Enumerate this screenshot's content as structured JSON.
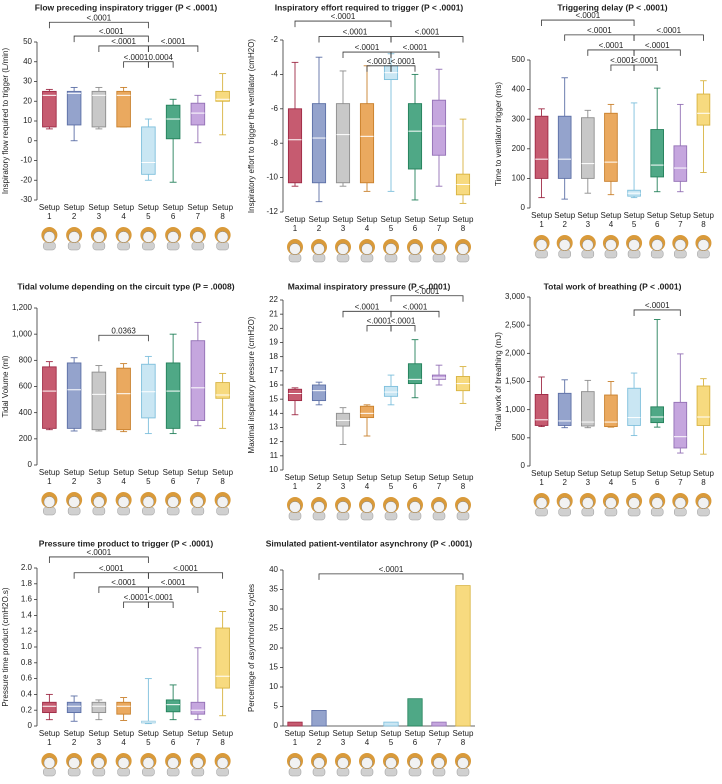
{
  "chart_data": [
    {
      "type": "box",
      "title": "Flow preceding inspiratory trigger (P < .0001)",
      "ylabel": "Inspiratory flow required to trigger (L/min)",
      "categories": [
        "Setup 1",
        "Setup 2",
        "Setup 3",
        "Setup 4",
        "Setup 5",
        "Setup 6",
        "Setup 7",
        "Setup 8"
      ],
      "colors": [
        "#c65b70",
        "#94a3cc",
        "#c8c8c8",
        "#eaa95f",
        "#c9e6f3",
        "#4fa886",
        "#c5a6de",
        "#f7da7f"
      ],
      "edge_colors": [
        "#9e2a45",
        "#5c6fa6",
        "#8d8d8d",
        "#c9802c",
        "#7dbfdc",
        "#24815b",
        "#9370b5",
        "#d8b340"
      ],
      "ylim": [
        -30,
        50
      ],
      "yticks": [
        -30,
        -20,
        -10,
        0,
        10,
        20,
        30,
        40,
        50
      ],
      "boxes": [
        {
          "min": 6,
          "q1": 7,
          "median": 23,
          "q3": 25,
          "max": 26
        },
        {
          "min": 0,
          "q1": 8,
          "median": 24,
          "q3": 25,
          "max": 27
        },
        {
          "min": 6,
          "q1": 7,
          "median": 23,
          "q3": 25,
          "max": 27
        },
        {
          "min": 7,
          "q1": 7,
          "median": 23,
          "q3": 25,
          "max": 27
        },
        {
          "min": -20,
          "q1": -17,
          "median": -11,
          "q3": 7,
          "max": 11
        },
        {
          "min": -21,
          "q1": 1,
          "median": 11,
          "q3": 18,
          "max": 21
        },
        {
          "min": -1,
          "q1": 8,
          "median": 14,
          "q3": 19,
          "max": 23
        },
        {
          "min": 3,
          "q1": 20,
          "median": 21,
          "q3": 25,
          "max": 34
        }
      ],
      "brackets": [
        {
          "from": 0,
          "to": 4,
          "y": 60,
          "label": "<.0001"
        },
        {
          "from": 1,
          "to": 4,
          "y": 53,
          "label": "<.0001"
        },
        {
          "from": 2,
          "to": 4,
          "y": 48,
          "label": "<.0001"
        },
        {
          "from": 4,
          "to": 6,
          "y": 48,
          "label": "<.0001"
        },
        {
          "from": 3,
          "to": 4,
          "y": 40,
          "label": "<.0001"
        },
        {
          "from": 4,
          "to": 5,
          "y": 40,
          "label": "0.0004"
        }
      ]
    },
    {
      "type": "box",
      "title": "Inspiratory effort required to trigger (P < .0001)",
      "ylabel": "Inspiratory effort to trigger the ventilator (cmH2O)",
      "categories": [
        "Setup 1",
        "Setup 2",
        "Setup 3",
        "Setup 4",
        "Setup 5",
        "Setup 6",
        "Setup 7",
        "Setup 8"
      ],
      "colors": [
        "#c65b70",
        "#94a3cc",
        "#c8c8c8",
        "#eaa95f",
        "#c9e6f3",
        "#4fa886",
        "#c5a6de",
        "#f7da7f"
      ],
      "edge_colors": [
        "#9e2a45",
        "#5c6fa6",
        "#8d8d8d",
        "#c9802c",
        "#7dbfdc",
        "#24815b",
        "#9370b5",
        "#d8b340"
      ],
      "ylim": [
        -12,
        -2
      ],
      "yticks": [
        -12,
        -10,
        -8,
        -6,
        -4,
        -2
      ],
      "boxes": [
        {
          "min": -10.5,
          "q1": -10.3,
          "median": -7.8,
          "q3": -6,
          "max": -3.3
        },
        {
          "min": -11.4,
          "q1": -10.3,
          "median": -7.7,
          "q3": -5.7,
          "max": -3
        },
        {
          "min": -10.5,
          "q1": -10.3,
          "median": -7.5,
          "q3": -5.7,
          "max": -3.8
        },
        {
          "min": -10.8,
          "q1": -10.3,
          "median": -7.6,
          "q3": -5.7,
          "max": -3.5
        },
        {
          "min": -10.8,
          "q1": -4.3,
          "median": -3.9,
          "q3": -3.5,
          "max": -2.8
        },
        {
          "min": -11.3,
          "q1": -9.5,
          "median": -7.3,
          "q3": -5.7,
          "max": -4
        },
        {
          "min": -10.5,
          "q1": -8.7,
          "median": -7,
          "q3": -5.5,
          "max": -3.7
        },
        {
          "min": -11.5,
          "q1": -11,
          "median": -10.4,
          "q3": -9.8,
          "max": -6.6
        }
      ],
      "brackets": [
        {
          "from": 0,
          "to": 4,
          "y": -0.9,
          "label": "<.0001"
        },
        {
          "from": 1,
          "to": 4,
          "y": -1.8,
          "label": "<.0001"
        },
        {
          "from": 4,
          "to": 7,
          "y": -1.8,
          "label": "<.0001"
        },
        {
          "from": 2,
          "to": 4,
          "y": -2.7,
          "label": "<.0001"
        },
        {
          "from": 4,
          "to": 6,
          "y": -2.7,
          "label": "<.0001"
        },
        {
          "from": 3,
          "to": 4,
          "y": -3.5,
          "label": "<.0001"
        },
        {
          "from": 4,
          "to": 5,
          "y": -3.5,
          "label": "<.0001"
        }
      ]
    },
    {
      "type": "box",
      "title": "Triggering delay (P < .0001)",
      "ylabel": "Time to ventilator trigger (ms)",
      "categories": [
        "Setup 1",
        "Setup 2",
        "Setup 3",
        "Setup 4",
        "Setup 5",
        "Setup 6",
        "Setup 7",
        "Setup 8"
      ],
      "colors": [
        "#c65b70",
        "#94a3cc",
        "#c8c8c8",
        "#eaa95f",
        "#c9e6f3",
        "#4fa886",
        "#c5a6de",
        "#f7da7f"
      ],
      "edge_colors": [
        "#9e2a45",
        "#5c6fa6",
        "#8d8d8d",
        "#c9802c",
        "#7dbfdc",
        "#24815b",
        "#9370b5",
        "#d8b340"
      ],
      "ylim": [
        0,
        500
      ],
      "yticks": [
        0,
        100,
        200,
        300,
        400,
        500
      ],
      "boxes": [
        {
          "min": 35,
          "q1": 100,
          "median": 165,
          "q3": 310,
          "max": 335
        },
        {
          "min": 30,
          "q1": 100,
          "median": 165,
          "q3": 310,
          "max": 440
        },
        {
          "min": 50,
          "q1": 100,
          "median": 150,
          "q3": 305,
          "max": 330
        },
        {
          "min": 45,
          "q1": 90,
          "median": 155,
          "q3": 320,
          "max": 350
        },
        {
          "min": 35,
          "q1": 40,
          "median": 50,
          "q3": 60,
          "max": 355
        },
        {
          "min": 55,
          "q1": 105,
          "median": 145,
          "q3": 265,
          "max": 405
        },
        {
          "min": 55,
          "q1": 90,
          "median": 135,
          "q3": 210,
          "max": 350
        },
        {
          "min": 120,
          "q1": 280,
          "median": 320,
          "q3": 385,
          "max": 430
        }
      ],
      "brackets": [
        {
          "from": 0,
          "to": 4,
          "y": 635,
          "label": "<.0001"
        },
        {
          "from": 1,
          "to": 4,
          "y": 585,
          "label": "<.0001"
        },
        {
          "from": 4,
          "to": 7,
          "y": 585,
          "label": "<.0001"
        },
        {
          "from": 2,
          "to": 4,
          "y": 534,
          "label": "<.0001"
        },
        {
          "from": 4,
          "to": 6,
          "y": 534,
          "label": "<.0001"
        },
        {
          "from": 3,
          "to": 4,
          "y": 483,
          "label": "<.0001"
        },
        {
          "from": 4,
          "to": 5,
          "y": 483,
          "label": "<.0001"
        }
      ]
    },
    {
      "type": "box",
      "title": "Tidal volume depending on the circuit type (P = .0008)",
      "ylabel": "Tidal Volume (ml)",
      "categories": [
        "Setup 1",
        "Setup 2",
        "Setup 3",
        "Setup 4",
        "Setup 5",
        "Setup 6",
        "Setup 7",
        "Setup 8"
      ],
      "colors": [
        "#c65b70",
        "#94a3cc",
        "#c8c8c8",
        "#eaa95f",
        "#c9e6f3",
        "#4fa886",
        "#c5a6de",
        "#f7da7f"
      ],
      "edge_colors": [
        "#9e2a45",
        "#5c6fa6",
        "#8d8d8d",
        "#c9802c",
        "#7dbfdc",
        "#24815b",
        "#9370b5",
        "#d8b340"
      ],
      "ylim": [
        0,
        1200
      ],
      "yticks": [
        0,
        200,
        400,
        600,
        800,
        {
          "value": 1000,
          "label": "1,000"
        },
        {
          "value": 1200,
          "label": "1,200"
        }
      ],
      "boxes": [
        {
          "min": 270,
          "q1": 280,
          "median": 565,
          "q3": 750,
          "max": 790
        },
        {
          "min": 260,
          "q1": 280,
          "median": 575,
          "q3": 780,
          "max": 820
        },
        {
          "min": 260,
          "q1": 270,
          "median": 540,
          "q3": 710,
          "max": 760
        },
        {
          "min": 255,
          "q1": 270,
          "median": 545,
          "q3": 740,
          "max": 775
        },
        {
          "min": 240,
          "q1": 360,
          "median": 560,
          "q3": 770,
          "max": 830
        },
        {
          "min": 240,
          "q1": 280,
          "median": 565,
          "q3": 780,
          "max": 1000
        },
        {
          "min": 300,
          "q1": 340,
          "median": 590,
          "q3": 950,
          "max": 1090
        },
        {
          "min": 280,
          "q1": 510,
          "median": 535,
          "q3": 630,
          "max": 700
        }
      ],
      "brackets": [
        {
          "from": 2,
          "to": 4,
          "y": 992,
          "label": "0.0363"
        }
      ]
    },
    {
      "type": "box",
      "title": "Maximal inspiratory pressure (P < .0001)",
      "ylabel": "Maximal inspiratory pressure (cmH2O)",
      "categories": [
        "Setup 1",
        "Setup 2",
        "Setup 3",
        "Setup 4",
        "Setup 5",
        "Setup 6",
        "Setup 7",
        "Setup 8"
      ],
      "colors": [
        "#c65b70",
        "#94a3cc",
        "#c8c8c8",
        "#eaa95f",
        "#c9e6f3",
        "#4fa886",
        "#c5a6de",
        "#f7da7f"
      ],
      "edge_colors": [
        "#9e2a45",
        "#5c6fa6",
        "#8d8d8d",
        "#c9802c",
        "#7dbfdc",
        "#24815b",
        "#9370b5",
        "#d8b340"
      ],
      "ylim": [
        10,
        22
      ],
      "yticks": [
        10,
        11,
        12,
        13,
        14,
        15,
        16,
        17,
        18,
        19,
        20,
        21,
        22
      ],
      "boxes": [
        {
          "min": 13.9,
          "q1": 14.9,
          "median": 15.4,
          "q3": 15.7,
          "max": 15.8
        },
        {
          "min": 14.6,
          "q1": 14.9,
          "median": 15.6,
          "q3": 16,
          "max": 16.2
        },
        {
          "min": 11.8,
          "q1": 13.1,
          "median": 13.5,
          "q3": 14,
          "max": 14.4
        },
        {
          "min": 12.4,
          "q1": 13.7,
          "median": 14,
          "q3": 14.5,
          "max": 14.6
        },
        {
          "min": 14.6,
          "q1": 15.2,
          "median": 15.5,
          "q3": 15.9,
          "max": 16.7
        },
        {
          "min": 15.1,
          "q1": 16.1,
          "median": 16.4,
          "q3": 17.5,
          "max": 19.2
        },
        {
          "min": 16,
          "q1": 16.4,
          "median": 16.5,
          "q3": 16.7,
          "max": 17.4
        },
        {
          "min": 14.7,
          "q1": 15.6,
          "median": 16.1,
          "q3": 16.6,
          "max": 17.3
        }
      ],
      "brackets": [
        {
          "from": 4,
          "to": 7,
          "y": 22.3,
          "label": "<.0001"
        },
        {
          "from": 2,
          "to": 4,
          "y": 21.2,
          "label": "<.0001"
        },
        {
          "from": 4,
          "to": 6,
          "y": 21.2,
          "label": "<.0001"
        },
        {
          "from": 3,
          "to": 4,
          "y": 20.2,
          "label": "<.0001"
        },
        {
          "from": 4,
          "to": 5,
          "y": 20.2,
          "label": "<.0001"
        }
      ]
    },
    {
      "type": "box",
      "title": "Total work of breathing (P < .0001)",
      "ylabel": "Total work of breathing (mJ)",
      "categories": [
        "Setup 1",
        "Setup 2",
        "Setup 3",
        "Setup 4",
        "Setup 5",
        "Setup 6",
        "Setup 7",
        "Setup 8"
      ],
      "colors": [
        "#c65b70",
        "#94a3cc",
        "#c8c8c8",
        "#eaa95f",
        "#c9e6f3",
        "#4fa886",
        "#c5a6de",
        "#f7da7f"
      ],
      "edge_colors": [
        "#9e2a45",
        "#5c6fa6",
        "#8d8d8d",
        "#c9802c",
        "#7dbfdc",
        "#24815b",
        "#9370b5",
        "#d8b340"
      ],
      "ylim": [
        0,
        3000
      ],
      "yticks": [
        0,
        500,
        {
          "value": 1000,
          "label": "1,000"
        },
        {
          "value": 1500,
          "label": "1,500"
        },
        {
          "value": 2000,
          "label": "2,000"
        },
        {
          "value": 2500,
          "label": "2,500"
        },
        {
          "value": 3000,
          "label": "3,000"
        }
      ],
      "boxes": [
        {
          "min": 700,
          "q1": 720,
          "median": 820,
          "q3": 1270,
          "max": 1580
        },
        {
          "min": 680,
          "q1": 720,
          "median": 800,
          "q3": 1290,
          "max": 1530
        },
        {
          "min": 680,
          "q1": 710,
          "median": 780,
          "q3": 1320,
          "max": 1520
        },
        {
          "min": 690,
          "q1": 700,
          "median": 780,
          "q3": 1260,
          "max": 1500
        },
        {
          "min": 540,
          "q1": 720,
          "median": 860,
          "q3": 1380,
          "max": 1650
        },
        {
          "min": 690,
          "q1": 770,
          "median": 870,
          "q3": 1050,
          "max": 2600
        },
        {
          "min": 230,
          "q1": 320,
          "median": 520,
          "q3": 1130,
          "max": 1990
        },
        {
          "min": 210,
          "q1": 720,
          "median": 870,
          "q3": 1420,
          "max": 1550
        }
      ],
      "brackets": [
        {
          "from": 4,
          "to": 6,
          "y": 2770,
          "label": "<.0001"
        }
      ]
    },
    {
      "type": "box",
      "title": "Pressure time product to trigger (P < .0001)",
      "ylabel": "Pressure time product (cmH2O.s)",
      "categories": [
        "Setup 1",
        "Setup 2",
        "Setup 3",
        "Setup 4",
        "Setup 5",
        "Setup 6",
        "Setup 7",
        "Setup 8"
      ],
      "colors": [
        "#c65b70",
        "#94a3cc",
        "#c8c8c8",
        "#eaa95f",
        "#c9e6f3",
        "#4fa886",
        "#c5a6de",
        "#f7da7f"
      ],
      "edge_colors": [
        "#9e2a45",
        "#5c6fa6",
        "#8d8d8d",
        "#c9802c",
        "#7dbfdc",
        "#24815b",
        "#9370b5",
        "#d8b340"
      ],
      "ylim": [
        0,
        2
      ],
      "yticks": [
        0,
        0.2,
        0.4,
        0.6,
        0.8,
        {
          "value": 1,
          "label": "1.0"
        },
        1.2,
        1.4,
        1.6,
        1.8,
        {
          "value": 2,
          "label": "2.0"
        }
      ],
      "boxes": [
        {
          "min": 0.08,
          "q1": 0.17,
          "median": 0.25,
          "q3": 0.3,
          "max": 0.4
        },
        {
          "min": 0.06,
          "q1": 0.17,
          "median": 0.25,
          "q3": 0.3,
          "max": 0.38
        },
        {
          "min": 0.08,
          "q1": 0.17,
          "median": 0.25,
          "q3": 0.3,
          "max": 0.33
        },
        {
          "min": 0.07,
          "q1": 0.15,
          "median": 0.25,
          "q3": 0.3,
          "max": 0.36
        },
        {
          "min": 0.03,
          "q1": 0.04,
          "median": 0.05,
          "q3": 0.06,
          "max": 0.6
        },
        {
          "min": 0.08,
          "q1": 0.18,
          "median": 0.27,
          "q3": 0.33,
          "max": 0.52
        },
        {
          "min": 0.08,
          "q1": 0.15,
          "median": 0.2,
          "q3": 0.3,
          "max": 0.99
        },
        {
          "min": 0.13,
          "q1": 0.48,
          "median": 0.63,
          "q3": 1.24,
          "max": 1.45
        }
      ],
      "brackets": [
        {
          "from": 0,
          "to": 4,
          "y": 2.14,
          "label": "<.0001"
        },
        {
          "from": 1,
          "to": 4,
          "y": 1.94,
          "label": "<.0001"
        },
        {
          "from": 4,
          "to": 7,
          "y": 1.94,
          "label": "<.0001"
        },
        {
          "from": 2,
          "to": 4,
          "y": 1.76,
          "label": "<.0001"
        },
        {
          "from": 4,
          "to": 6,
          "y": 1.76,
          "label": "<.0001"
        },
        {
          "from": 3,
          "to": 4,
          "y": 1.57,
          "label": "<.0001"
        },
        {
          "from": 4,
          "to": 5,
          "y": 1.57,
          "label": "<.0001"
        }
      ]
    },
    {
      "type": "bar",
      "title": "Simulated patient-ventilator asynchrony (P < .0001)",
      "ylabel": "Percentage of asynchronized cycles",
      "categories": [
        "Setup 1",
        "Setup 2",
        "Setup 3",
        "Setup 4",
        "Setup 5",
        "Setup 6",
        "Setup 7",
        "Setup 8"
      ],
      "colors": [
        "#c65b70",
        "#94a3cc",
        "#c8c8c8",
        "#eaa95f",
        "#c9e6f3",
        "#4fa886",
        "#c5a6de",
        "#f7da7f"
      ],
      "edge_colors": [
        "#9e2a45",
        "#5c6fa6",
        "#8d8d8d",
        "#c9802c",
        "#7dbfdc",
        "#24815b",
        "#9370b5",
        "#d8b340"
      ],
      "ylim": [
        0,
        40
      ],
      "yticks": [
        0,
        5,
        10,
        15,
        20,
        25,
        30,
        35,
        40
      ],
      "values": [
        1,
        4,
        0,
        0,
        1,
        7,
        1,
        36
      ],
      "brackets": [
        {
          "from": 1,
          "to": 7,
          "y": 39,
          "label": "<.0001"
        }
      ]
    }
  ]
}
